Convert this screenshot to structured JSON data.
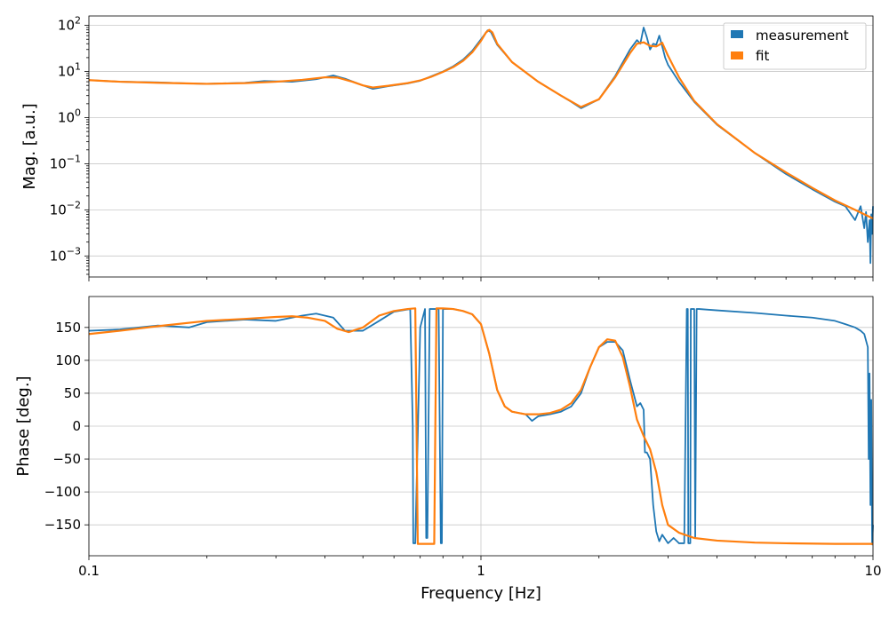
{
  "colors": {
    "measurement": "#1f77b4",
    "fit": "#ff7f0e"
  },
  "chart_data": [
    {
      "type": "line",
      "panel": "magnitude",
      "xscale": "log",
      "yscale": "log",
      "xlim": [
        0.1,
        10
      ],
      "ylim": [
        0.00035,
        160
      ],
      "ylabel": "Mag. [a.u.]",
      "xlabel": "",
      "grid": true,
      "legend": "top-right",
      "yticks": [
        0.001,
        0.01,
        0.1,
        1,
        10,
        100
      ],
      "ytick_labels": [
        {
          "base": "10",
          "exp": "−3"
        },
        {
          "base": "10",
          "exp": "−2"
        },
        {
          "base": "10",
          "exp": "−1"
        },
        {
          "base": "10",
          "exp": "0"
        },
        {
          "base": "10",
          "exp": "1"
        },
        {
          "base": "10",
          "exp": "2"
        }
      ],
      "series": [
        {
          "name": "measurement",
          "x": [
            0.1,
            0.12,
            0.15,
            0.18,
            0.2,
            0.25,
            0.28,
            0.33,
            0.38,
            0.42,
            0.45,
            0.5,
            0.53,
            0.58,
            0.65,
            0.7,
            0.75,
            0.8,
            0.85,
            0.9,
            0.95,
            1.0,
            1.04,
            1.06,
            1.1,
            1.2,
            1.4,
            1.6,
            1.7,
            1.8,
            2.0,
            2.2,
            2.4,
            2.5,
            2.55,
            2.6,
            2.65,
            2.7,
            2.75,
            2.8,
            2.85,
            2.9,
            2.95,
            3.0,
            3.2,
            3.5,
            4.0,
            5.0,
            6.0,
            7.0,
            8.0,
            8.5,
            9.0,
            9.3,
            9.5,
            9.6,
            9.7,
            9.8,
            9.85,
            9.9,
            9.95,
            10.0
          ],
          "y": [
            6.5,
            6.0,
            5.8,
            5.5,
            5.4,
            5.7,
            6.2,
            6.0,
            6.8,
            8.2,
            7.0,
            5.0,
            4.2,
            4.8,
            5.5,
            6.3,
            8.0,
            10.0,
            13.0,
            18.0,
            28.0,
            50.0,
            78.0,
            72.0,
            38.0,
            16.0,
            6.0,
            3.0,
            2.2,
            1.6,
            2.5,
            8.0,
            30.0,
            48.0,
            40.0,
            90.0,
            55.0,
            30.0,
            40.0,
            38.0,
            60.0,
            35.0,
            20.0,
            14.0,
            6.0,
            2.2,
            0.7,
            0.17,
            0.06,
            0.028,
            0.015,
            0.012,
            0.006,
            0.012,
            0.004,
            0.009,
            0.002,
            0.006,
            0.0007,
            0.008,
            0.003,
            0.012
          ]
        },
        {
          "name": "fit",
          "x": [
            0.1,
            0.12,
            0.15,
            0.18,
            0.2,
            0.25,
            0.3,
            0.35,
            0.4,
            0.43,
            0.47,
            0.5,
            0.53,
            0.58,
            0.65,
            0.7,
            0.75,
            0.8,
            0.85,
            0.9,
            0.95,
            1.0,
            1.03,
            1.05,
            1.07,
            1.1,
            1.2,
            1.4,
            1.6,
            1.8,
            2.0,
            2.2,
            2.4,
            2.5,
            2.6,
            2.7,
            2.8,
            2.85,
            2.9,
            3.0,
            3.2,
            3.5,
            4.0,
            5.0,
            6.0,
            7.0,
            8.0,
            9.0,
            10.0
          ],
          "y": [
            6.5,
            6.0,
            5.7,
            5.5,
            5.4,
            5.6,
            6.0,
            6.6,
            7.5,
            7.4,
            6.0,
            5.0,
            4.5,
            4.9,
            5.6,
            6.4,
            7.8,
            9.8,
            12.5,
            17.0,
            26.0,
            46.0,
            70.0,
            80.0,
            70.0,
            40.0,
            16.0,
            6.0,
            3.0,
            1.7,
            2.5,
            7.5,
            25.0,
            40.0,
            43.0,
            36.0,
            35.0,
            38.0,
            42.0,
            22.0,
            7.5,
            2.3,
            0.72,
            0.17,
            0.065,
            0.03,
            0.016,
            0.01,
            0.0065
          ]
        }
      ]
    },
    {
      "type": "line",
      "panel": "phase",
      "xscale": "log",
      "xlim": [
        0.1,
        10
      ],
      "ylim": [
        -197,
        197
      ],
      "ylabel": "Phase [deg.]",
      "xlabel": "Frequency [Hz]",
      "grid": true,
      "yticks": [
        -150,
        -100,
        -50,
        0,
        50,
        100,
        150
      ],
      "ytick_labels": [
        "−150",
        "−100",
        "−50",
        "0",
        "50",
        "100",
        "150"
      ],
      "xticks": [
        0.1,
        1,
        10
      ],
      "xtick_labels": [
        "0.1",
        "1",
        "10"
      ],
      "series": [
        {
          "name": "measurement",
          "x": [
            0.1,
            0.12,
            0.15,
            0.18,
            0.2,
            0.25,
            0.3,
            0.35,
            0.38,
            0.42,
            0.45,
            0.5,
            0.55,
            0.6,
            0.66,
            0.67,
            0.672,
            0.68,
            0.7,
            0.72,
            0.725,
            0.73,
            0.74,
            0.76,
            0.78,
            0.79,
            0.795,
            0.8,
            0.81,
            0.85,
            0.9,
            0.95,
            1.0,
            1.05,
            1.1,
            1.15,
            1.2,
            1.3,
            1.35,
            1.4,
            1.5,
            1.6,
            1.7,
            1.8,
            1.9,
            2.0,
            2.1,
            2.2,
            2.3,
            2.4,
            2.5,
            2.55,
            2.6,
            2.62,
            2.65,
            2.7,
            2.75,
            2.8,
            2.85,
            2.9,
            3.0,
            3.1,
            3.2,
            3.3,
            3.35,
            3.37,
            3.38,
            3.42,
            3.43,
            3.5,
            3.52,
            3.55,
            3.6,
            4.0,
            5.0,
            6.0,
            7.0,
            8.0,
            8.5,
            9.0,
            9.3,
            9.5,
            9.7,
            9.75,
            9.8,
            9.85,
            9.9,
            9.95,
            10.0
          ],
          "y": [
            145,
            147,
            153,
            150,
            158,
            162,
            160,
            168,
            171,
            165,
            145,
            145,
            160,
            174,
            178,
            0,
            -178,
            -178,
            150,
            178,
            -170,
            -170,
            178,
            178,
            178,
            -178,
            -178,
            178,
            178,
            178,
            175,
            170,
            155,
            110,
            55,
            30,
            22,
            18,
            8,
            15,
            18,
            22,
            30,
            50,
            90,
            120,
            128,
            128,
            115,
            70,
            30,
            35,
            25,
            -40,
            -40,
            -50,
            -120,
            -160,
            -175,
            -165,
            -178,
            -170,
            -178,
            -178,
            178,
            178,
            -178,
            -178,
            178,
            178,
            -170,
            178,
            178,
            176,
            172,
            168,
            165,
            160,
            155,
            150,
            145,
            140,
            120,
            -50,
            80,
            -120,
            40,
            -180,
            -150
          ]
        },
        {
          "name": "fit",
          "x": [
            0.1,
            0.12,
            0.15,
            0.2,
            0.25,
            0.3,
            0.33,
            0.36,
            0.4,
            0.43,
            0.46,
            0.5,
            0.55,
            0.6,
            0.65,
            0.68,
            0.69,
            0.7,
            0.75,
            0.76,
            0.77,
            0.8,
            0.85,
            0.9,
            0.95,
            1.0,
            1.05,
            1.1,
            1.15,
            1.2,
            1.3,
            1.4,
            1.5,
            1.6,
            1.7,
            1.8,
            1.9,
            2.0,
            2.1,
            2.2,
            2.3,
            2.4,
            2.5,
            2.6,
            2.7,
            2.8,
            2.9,
            3.0,
            3.2,
            3.5,
            4.0,
            5.0,
            6.0,
            8.0,
            10.0
          ],
          "y": [
            140,
            145,
            152,
            160,
            163,
            166,
            167,
            165,
            160,
            148,
            143,
            150,
            168,
            175,
            178,
            179,
            -179,
            -179,
            -179,
            -179,
            179,
            179,
            178,
            175,
            170,
            155,
            110,
            55,
            30,
            22,
            18,
            18,
            20,
            25,
            35,
            55,
            90,
            120,
            132,
            130,
            105,
            60,
            10,
            -15,
            -35,
            -70,
            -120,
            -150,
            -162,
            -170,
            -174,
            -177,
            -178,
            -179,
            -179
          ]
        }
      ]
    }
  ],
  "legend": [
    {
      "label": "measurement",
      "series": "measurement"
    },
    {
      "label": "fit",
      "series": "fit"
    }
  ]
}
